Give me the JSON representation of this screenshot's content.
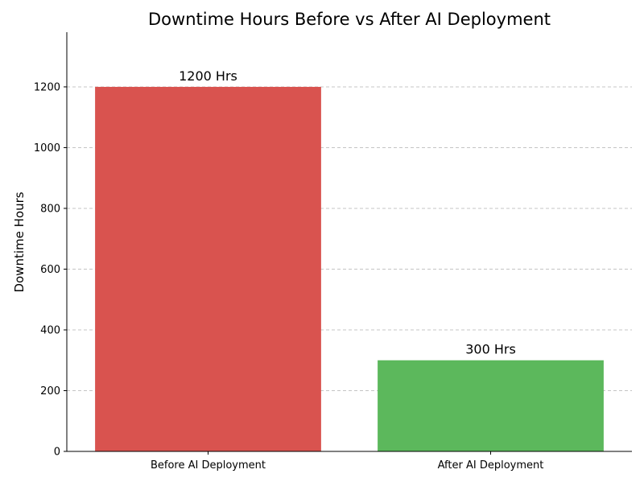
{
  "chart_data": {
    "type": "bar",
    "title": "Downtime Hours Before vs After AI Deployment",
    "xlabel": "",
    "ylabel": "Downtime Hours",
    "categories": [
      "Before AI Deployment",
      "After AI Deployment"
    ],
    "values": [
      1200,
      300
    ],
    "data_labels": [
      "1200 Hrs",
      "300 Hrs"
    ],
    "colors": [
      "#d9534f",
      "#5cb85c"
    ],
    "ylim": [
      0,
      1380
    ],
    "yticks": [
      0,
      200,
      400,
      600,
      800,
      1000,
      1200
    ],
    "grid": "y-dashed"
  }
}
